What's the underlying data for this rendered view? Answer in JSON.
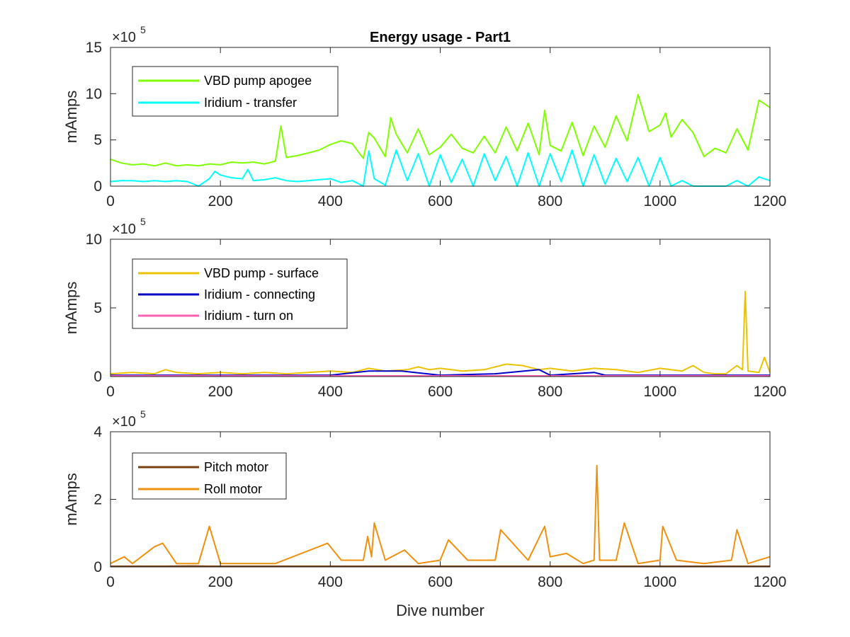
{
  "chart_data": [
    {
      "type": "line",
      "title": "Energy usage - Part1",
      "xlabel": "",
      "ylabel": "mAmps",
      "xlim": [
        0,
        1200
      ],
      "ylim": [
        0,
        15
      ],
      "xticks": [
        0,
        200,
        400,
        600,
        800,
        1000,
        1200
      ],
      "yticks": [
        0,
        5,
        10,
        15
      ],
      "y_exponent_base": "×10",
      "y_exponent_power": "5",
      "legend_placement": "top-left",
      "series": [
        {
          "name": "VBD pump apogee",
          "color": "#80ff00",
          "x": [
            0,
            20,
            40,
            60,
            80,
            100,
            120,
            140,
            160,
            180,
            200,
            220,
            240,
            260,
            280,
            300,
            310,
            320,
            340,
            360,
            380,
            400,
            420,
            440,
            460,
            470,
            480,
            500,
            510,
            520,
            540,
            560,
            580,
            600,
            620,
            640,
            660,
            680,
            700,
            720,
            740,
            760,
            780,
            790,
            800,
            820,
            840,
            860,
            880,
            900,
            920,
            940,
            960,
            980,
            1000,
            1010,
            1020,
            1040,
            1060,
            1080,
            1100,
            1120,
            1140,
            1160,
            1180,
            1200
          ],
          "y": [
            2.9,
            2.5,
            2.3,
            2.4,
            2.2,
            2.5,
            2.2,
            2.3,
            2.2,
            2.4,
            2.3,
            2.6,
            2.5,
            2.6,
            2.4,
            2.7,
            6.5,
            3.1,
            3.3,
            3.6,
            3.9,
            4.5,
            4.9,
            4.6,
            3.0,
            5.8,
            5.2,
            3.2,
            7.4,
            5.6,
            3.6,
            6.2,
            3.4,
            4.2,
            5.6,
            4.1,
            3.6,
            5.4,
            3.6,
            6.4,
            3.8,
            6.8,
            3.4,
            8.2,
            4.4,
            3.8,
            6.9,
            3.3,
            6.5,
            4.2,
            7.6,
            4.9,
            9.9,
            5.9,
            6.6,
            7.9,
            5.3,
            7.2,
            5.8,
            3.2,
            4.1,
            3.6,
            6.2,
            3.9,
            9.3,
            8.5
          ]
        },
        {
          "name": "Iridium - transfer",
          "color": "#00ffff",
          "x": [
            0,
            20,
            40,
            60,
            80,
            100,
            120,
            140,
            160,
            180,
            190,
            200,
            220,
            240,
            250,
            260,
            280,
            300,
            320,
            340,
            360,
            380,
            400,
            420,
            440,
            460,
            470,
            480,
            500,
            520,
            540,
            560,
            580,
            600,
            620,
            640,
            660,
            680,
            700,
            720,
            740,
            760,
            780,
            800,
            820,
            840,
            860,
            880,
            900,
            920,
            940,
            960,
            980,
            1000,
            1020,
            1040,
            1060,
            1080,
            1100,
            1120,
            1140,
            1160,
            1180,
            1200
          ],
          "y": [
            0.5,
            0.6,
            0.6,
            0.5,
            0.6,
            0.5,
            0.6,
            0.5,
            0.0,
            0.8,
            1.6,
            1.2,
            0.9,
            0.8,
            1.8,
            0.6,
            0.7,
            0.9,
            0.6,
            0.5,
            0.6,
            0.7,
            0.8,
            0.4,
            0.6,
            0.0,
            3.8,
            0.8,
            0.1,
            3.9,
            0.6,
            3.5,
            0.0,
            3.4,
            0.4,
            2.9,
            0.0,
            3.5,
            0.6,
            3.2,
            0.0,
            3.6,
            0.0,
            3.5,
            0.5,
            3.9,
            0.0,
            3.4,
            0.2,
            3.0,
            0.5,
            3.1,
            0.0,
            3.1,
            0.0,
            0.6,
            0.0,
            0.0,
            0.0,
            0.0,
            0.6,
            0.0,
            1.0,
            0.6
          ]
        }
      ]
    },
    {
      "type": "line",
      "title": "",
      "xlabel": "",
      "ylabel": "mAmps",
      "xlim": [
        0,
        1200
      ],
      "ylim": [
        0,
        10
      ],
      "xticks": [
        0,
        200,
        400,
        600,
        800,
        1000,
        1200
      ],
      "yticks": [
        0,
        5,
        10
      ],
      "y_exponent_base": "×10",
      "y_exponent_power": "5",
      "legend_placement": "top-left",
      "series": [
        {
          "name": "VBD pump - surface",
          "color": "#edc200",
          "x": [
            0,
            40,
            80,
            100,
            120,
            160,
            200,
            240,
            280,
            320,
            360,
            400,
            440,
            470,
            500,
            540,
            560,
            580,
            600,
            640,
            680,
            720,
            750,
            780,
            800,
            840,
            880,
            920,
            960,
            1000,
            1040,
            1060,
            1080,
            1100,
            1120,
            1140,
            1150,
            1155,
            1160,
            1180,
            1190,
            1200
          ],
          "y": [
            0.2,
            0.3,
            0.2,
            0.5,
            0.3,
            0.2,
            0.3,
            0.2,
            0.3,
            0.2,
            0.3,
            0.4,
            0.3,
            0.6,
            0.4,
            0.5,
            0.7,
            0.5,
            0.6,
            0.4,
            0.5,
            0.9,
            0.8,
            0.5,
            0.6,
            0.4,
            0.6,
            0.5,
            0.3,
            0.6,
            0.4,
            0.8,
            0.3,
            0.2,
            0.2,
            0.8,
            0.5,
            6.2,
            0.4,
            0.3,
            1.4,
            0.3
          ]
        },
        {
          "name": "Iridium - connecting",
          "color": "#0000cc",
          "x": [
            0,
            100,
            200,
            300,
            400,
            470,
            530,
            600,
            700,
            780,
            800,
            880,
            900,
            1000,
            1100,
            1200
          ],
          "y": [
            0.1,
            0.1,
            0.1,
            0.1,
            0.1,
            0.4,
            0.4,
            0.1,
            0.2,
            0.5,
            0.1,
            0.3,
            0.1,
            0.1,
            0.1,
            0.1
          ]
        },
        {
          "name": "Iridium - turn on",
          "color": "#ff60b0",
          "x": [
            0,
            200,
            400,
            600,
            800,
            1000,
            1200
          ],
          "y": [
            0.05,
            0.05,
            0.05,
            0.05,
            0.05,
            0.05,
            0.05
          ]
        }
      ]
    },
    {
      "type": "line",
      "title": "",
      "xlabel": "Dive number",
      "ylabel": "mAmps",
      "xlim": [
        0,
        1200
      ],
      "ylim": [
        0,
        4
      ],
      "xticks": [
        0,
        200,
        400,
        600,
        800,
        1000,
        1200
      ],
      "yticks": [
        0,
        2,
        4
      ],
      "y_exponent_base": "×10",
      "y_exponent_power": "5",
      "legend_placement": "top-left",
      "series": [
        {
          "name": "Pitch motor",
          "color": "#7a3f0f",
          "x": [
            0,
            100,
            150,
            180,
            200,
            300,
            400,
            500,
            600,
            700,
            800,
            900,
            1000,
            1100,
            1200
          ],
          "y": [
            0.02,
            0.02,
            0.03,
            0.02,
            0.02,
            0.02,
            0.02,
            0.02,
            0.02,
            0.02,
            0.02,
            0.02,
            0.02,
            0.02,
            0.02
          ]
        },
        {
          "name": "Roll motor",
          "color": "#f0900f",
          "x": [
            0,
            25,
            40,
            80,
            95,
            120,
            160,
            180,
            200,
            300,
            395,
            420,
            460,
            468,
            475,
            480,
            500,
            535,
            560,
            600,
            615,
            650,
            700,
            710,
            760,
            790,
            800,
            830,
            860,
            880,
            885,
            890,
            920,
            935,
            960,
            1000,
            1005,
            1030,
            1080,
            1130,
            1140,
            1160,
            1200
          ],
          "y": [
            0.1,
            0.3,
            0.1,
            0.6,
            0.7,
            0.1,
            0.1,
            1.2,
            0.1,
            0.1,
            0.7,
            0.2,
            0.2,
            0.9,
            0.3,
            1.3,
            0.2,
            0.5,
            0.1,
            0.2,
            0.8,
            0.2,
            0.2,
            1.1,
            0.2,
            1.2,
            0.3,
            0.4,
            0.1,
            0.2,
            3.0,
            0.2,
            0.2,
            1.3,
            0.1,
            0.2,
            1.2,
            0.2,
            0.1,
            0.2,
            1.1,
            0.1,
            0.3
          ]
        }
      ]
    }
  ]
}
